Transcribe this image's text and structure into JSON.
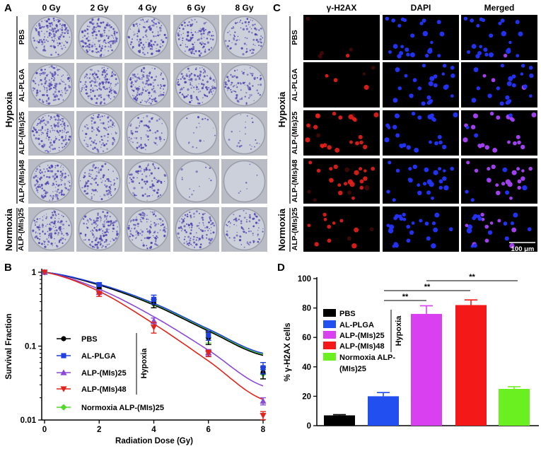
{
  "panels": {
    "a": "A",
    "b": "B",
    "c": "C",
    "d": "D"
  },
  "panel_a": {
    "columns": [
      "0 Gy",
      "2 Gy",
      "4 Gy",
      "6 Gy",
      "8 Gy"
    ],
    "rows": [
      "PBS",
      "AL-PLGA",
      "ALP-(MIs)25",
      "ALP-(MIs)48",
      "ALP-(MIs)25"
    ],
    "groups": {
      "hypoxia": "Hypoxia",
      "normoxia": "Normoxia"
    },
    "colony_density": [
      [
        0.9,
        0.9,
        0.8,
        0.7,
        0.5
      ],
      [
        0.9,
        0.9,
        0.85,
        0.75,
        0.55
      ],
      [
        0.9,
        0.6,
        0.45,
        0.12,
        0.15
      ],
      [
        0.9,
        0.6,
        0.5,
        0.08,
        0.04
      ],
      [
        0.85,
        0.85,
        0.8,
        0.7,
        0.5
      ]
    ],
    "colors": {
      "well": "#ccd0da",
      "colony": "#5248b0"
    }
  },
  "panel_c": {
    "columns": [
      "γ-H2AX",
      "DAPI",
      "Merged"
    ],
    "rows": [
      "PBS",
      "AL-PLGA",
      "ALP-(MIs)25",
      "ALP-(MIs)48",
      "ALP-(MIs)25"
    ],
    "groups": {
      "hypoxia": "Hypoxia",
      "normoxia": "Normoxia"
    },
    "scale_bar": "100 μm",
    "red_intensity": [
      0.05,
      0.25,
      0.85,
      0.9,
      0.3
    ],
    "colors": {
      "red": "#e8201c",
      "blue": "#2232f0",
      "merged": "#a040f0",
      "background": "#000000"
    }
  },
  "chart_data": [
    {
      "type": "line",
      "panel": "B",
      "xlabel": "Radiation Dose (Gy)",
      "ylabel": "Survival Fraction",
      "x": [
        0,
        2,
        4,
        6,
        8
      ],
      "xticks": [
        "0",
        "2",
        "4",
        "6",
        "8"
      ],
      "yticks": [
        "0.01",
        "0.1",
        "1"
      ],
      "xlim": [
        0,
        8
      ],
      "ylim": [
        0.01,
        1
      ],
      "yscale": "log",
      "legend_position": "bottom-left",
      "legend_group": "Hypoxia",
      "series": [
        {
          "name": "PBS",
          "color": "#000000",
          "marker": "circle",
          "values": [
            1,
            0.63,
            0.38,
            0.13,
            0.044
          ],
          "err": [
            0,
            0.04,
            0.05,
            0.025,
            0.008
          ],
          "fit": [
            1,
            0.67,
            0.36,
            0.16,
            0.075
          ]
        },
        {
          "name": "AL-PLGA",
          "color": "#1f3fe0",
          "marker": "square",
          "values": [
            1,
            0.68,
            0.43,
            0.14,
            0.051
          ],
          "err": [
            0,
            0.04,
            0.06,
            0.02,
            0.009
          ],
          "fit": [
            1,
            0.69,
            0.38,
            0.17,
            0.08
          ]
        },
        {
          "name": "ALP-(MIs)25",
          "color": "#8a4ad8",
          "marker": "triangle-up",
          "values": [
            1,
            0.54,
            0.22,
            0.082,
            0.018
          ],
          "err": [
            0,
            0.04,
            0.02,
            0.008,
            0.002
          ],
          "fit": [
            1,
            0.59,
            0.25,
            0.088,
            0.029
          ]
        },
        {
          "name": "ALP-(MIs)48",
          "color": "#e0241c",
          "marker": "triangle-down",
          "values": [
            1,
            0.51,
            0.18,
            0.08,
            0.0115
          ],
          "err": [
            0,
            0.04,
            0.03,
            0.008,
            0.0015
          ],
          "fit": [
            1,
            0.55,
            0.2,
            0.063,
            0.019
          ]
        },
        {
          "name": "Normoxia ALP-(MIs)25",
          "color": "#52d82a",
          "marker": "diamond",
          "values": [
            1,
            0.65,
            0.37,
            0.13,
            0.042
          ],
          "err": [
            0,
            0.04,
            0.04,
            0.02,
            0.006
          ],
          "fit": [
            1,
            0.68,
            0.37,
            0.165,
            0.077
          ]
        }
      ]
    },
    {
      "type": "bar",
      "panel": "D",
      "ylabel": "% γ-H2AX cells",
      "categories": [
        "PBS",
        "AL-PLGA",
        "ALP-(MIs)25",
        "ALP-(MIs)48",
        "Normoxia ALP-(MIs)25"
      ],
      "legend_labels": [
        "PBS",
        "AL-PLGA",
        "ALP-(MIs)25",
        "ALP-(MIs)48",
        "Normoxia ALP-",
        "(MIs)25"
      ],
      "legend_group": "Hypoxia",
      "legend_position": "top-left",
      "values": [
        7,
        20,
        76,
        82,
        25
      ],
      "err": [
        0.5,
        2.5,
        5.5,
        3.5,
        1.5
      ],
      "colors": [
        "#000000",
        "#2250f0",
        "#d840f0",
        "#f41818",
        "#6af020"
      ],
      "yticks": [
        "0",
        "20",
        "40",
        "60",
        "80",
        "100"
      ],
      "ylim": [
        0,
        100
      ],
      "significance": [
        {
          "from": "AL-PLGA",
          "to": "ALP-(MIs)25",
          "label": "**"
        },
        {
          "from": "AL-PLGA",
          "to": "ALP-(MIs)48",
          "label": "**"
        },
        {
          "from": "ALP-(MIs)25",
          "to": "Normoxia ALP-(MIs)25",
          "label": "**"
        }
      ]
    }
  ]
}
